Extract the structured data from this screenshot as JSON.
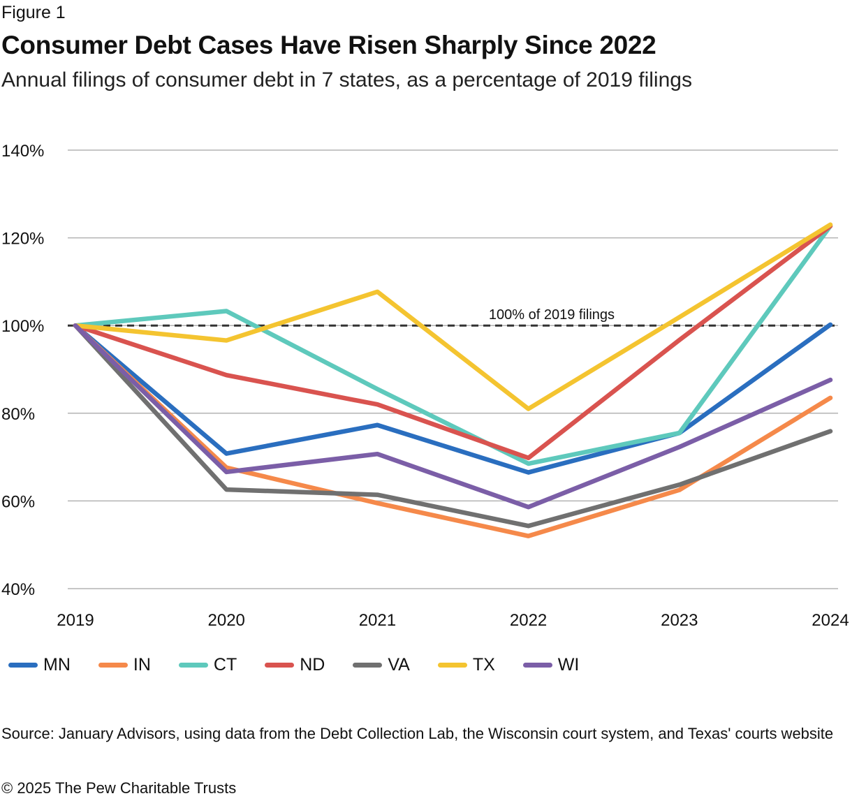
{
  "figure_label": "Figure 1",
  "title": "Consumer Debt Cases Have Risen Sharply Since 2022",
  "subtitle": "Annual filings of consumer debt in 7 states, as a percentage of 2019 filings",
  "source": "Source: January Advisors, using data from the Debt Collection Lab, the Wisconsin court system, and Texas' courts website",
  "copyright": "© 2025 The Pew Charitable Trusts",
  "chart_data": {
    "type": "line",
    "title": "Consumer Debt Cases Have Risen Sharply Since 2022",
    "subtitle": "Annual filings of consumer debt in 7 states, as a percentage of 2019 filings",
    "x": [
      "2019",
      "2020",
      "2021",
      "2022",
      "2023",
      "2024"
    ],
    "ylim": [
      40,
      140
    ],
    "yticks": [
      40,
      60,
      80,
      100,
      120,
      140
    ],
    "ytick_labels": [
      "40%",
      "60%",
      "80%",
      "100%",
      "120%",
      "140%"
    ],
    "grid": true,
    "legend_position": "bottom",
    "reference_line": {
      "value": 100,
      "label": "100% of 2019 filings",
      "style": "dashed"
    },
    "series": [
      {
        "name": "MN",
        "color": "#2a6ebf",
        "values": [
          100,
          70.8,
          77.3,
          66.5,
          75.5,
          100.2
        ]
      },
      {
        "name": "IN",
        "color": "#f5894a",
        "values": [
          100,
          67.6,
          59.5,
          52.0,
          62.5,
          83.5
        ]
      },
      {
        "name": "CT",
        "color": "#5ec9bc",
        "values": [
          100,
          103.3,
          85.5,
          68.5,
          75.5,
          122.7
        ]
      },
      {
        "name": "ND",
        "color": "#d9534f",
        "values": [
          100,
          88.7,
          82.0,
          69.8,
          96.7,
          122.7
        ]
      },
      {
        "name": "VA",
        "color": "#707070",
        "values": [
          100,
          62.6,
          61.4,
          54.3,
          63.7,
          75.9
        ]
      },
      {
        "name": "TX",
        "color": "#f4c430",
        "values": [
          100,
          96.6,
          107.7,
          81.0,
          101.9,
          123.0
        ]
      },
      {
        "name": "WI",
        "color": "#7b5ea7",
        "values": [
          100,
          66.6,
          70.7,
          58.6,
          72.3,
          87.6
        ]
      }
    ]
  }
}
